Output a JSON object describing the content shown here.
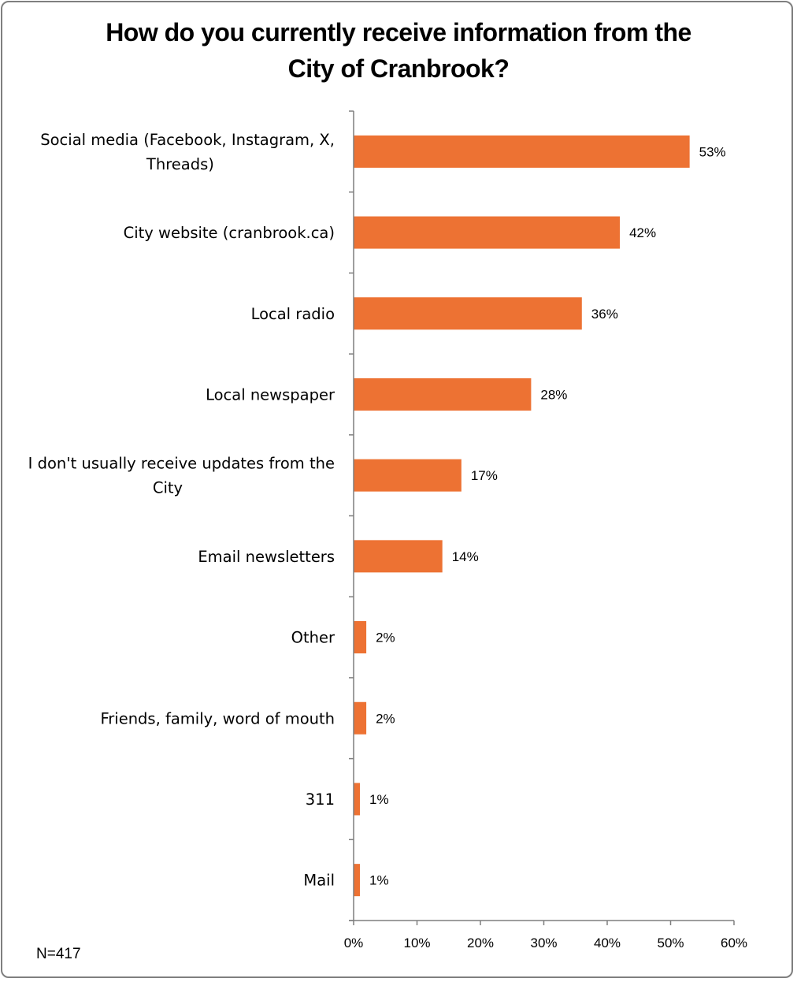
{
  "chart_data": {
    "type": "bar",
    "orientation": "horizontal",
    "title_lines": [
      "How do you currently receive information from the",
      "City of Cranbrook?"
    ],
    "categories": [
      [
        "Social media (Facebook, Instagram, X,",
        "Threads)"
      ],
      [
        "City website (cranbrook.ca)"
      ],
      [
        "Local radio"
      ],
      [
        "Local newspaper"
      ],
      [
        "I don't usually receive updates from the",
        "City"
      ],
      [
        "Email newsletters"
      ],
      [
        "Other"
      ],
      [
        "Friends, family, word of mouth"
      ],
      [
        "311"
      ],
      [
        "Mail"
      ]
    ],
    "values": [
      53,
      42,
      36,
      28,
      17,
      14,
      2,
      2,
      1,
      1
    ],
    "data_labels": [
      "53%",
      "42%",
      "36%",
      "28%",
      "17%",
      "14%",
      "2%",
      "2%",
      "1%",
      "1%"
    ],
    "x_ticks": [
      "0%",
      "10%",
      "20%",
      "30%",
      "40%",
      "50%",
      "60%"
    ],
    "xlim": [
      0,
      60
    ],
    "bar_color": "#ED7233",
    "grid": false,
    "legend": "none"
  },
  "note": "N=417"
}
